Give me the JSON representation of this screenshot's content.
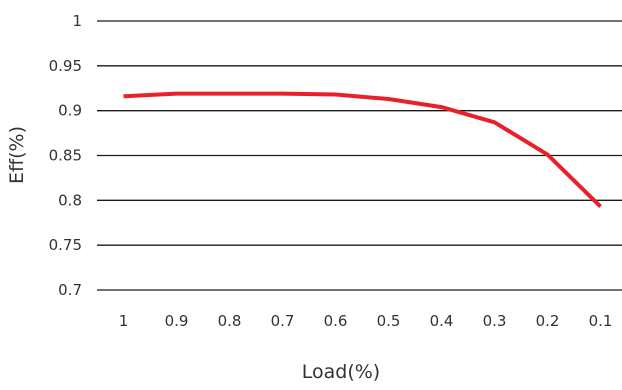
{
  "chart_data": {
    "type": "line",
    "title": "",
    "xlabel": "Load(%)",
    "ylabel": "Eff(%)",
    "categories": [
      "1",
      "0.9",
      "0.8",
      "0.7",
      "0.6",
      "0.5",
      "0.4",
      "0.3",
      "0.2",
      "0.1"
    ],
    "y_ticks": [
      "0.7",
      "0.75",
      "0.8",
      "0.85",
      "0.9",
      "0.95",
      "1"
    ],
    "ylim": [
      0.7,
      1
    ],
    "grid": true,
    "legend": "none",
    "series": [
      {
        "values": [
          0.916,
          0.919,
          0.919,
          0.919,
          0.918,
          0.913,
          0.904,
          0.887,
          0.851,
          0.793
        ],
        "color": "#e8202a"
      }
    ]
  }
}
